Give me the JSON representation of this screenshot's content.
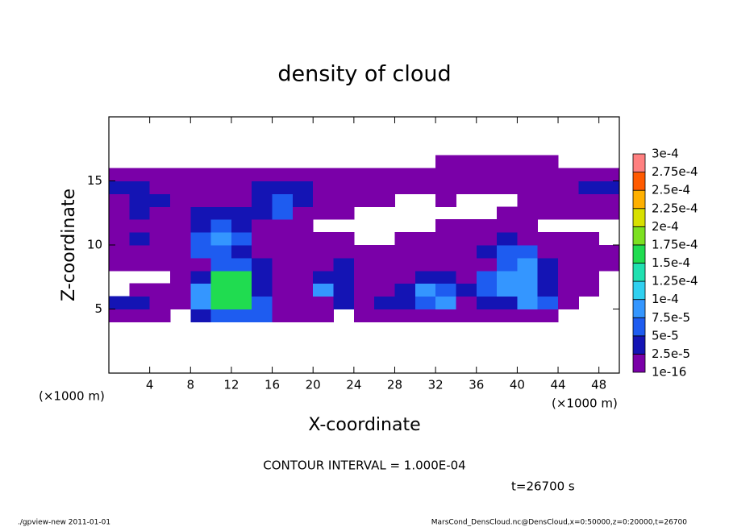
{
  "chart_data": {
    "type": "contour",
    "title": "density of cloud",
    "x_label": "X-coordinate",
    "y_label": "Z-coordinate",
    "x_unit": "(×1000 m)",
    "y_unit": "(×1000 m)",
    "annotation": "CONTOUR INTERVAL = 1.000E-04",
    "time_label": "t=26700 s",
    "footer_left": "./gpview-new   2011-01-01",
    "footer_right": "MarsCond_DensCloud.nc@DensCloud,x=0:50000,z=0:20000,t=26700",
    "xlim": [
      0,
      50
    ],
    "ylim": [
      0,
      20
    ],
    "xticks": [
      4,
      8,
      12,
      16,
      20,
      24,
      28,
      32,
      36,
      40,
      44,
      48
    ],
    "yticks": [
      5,
      10,
      15
    ],
    "levels": [
      1e-16,
      {
        "value": 2.5e-05,
        "label": "2.5e-5"
      },
      {
        "value": 5e-05,
        "label": "5e-5"
      },
      {
        "value": 7.5e-05,
        "label": "7.5e-5"
      },
      {
        "value": 0.0001,
        "label": "1e-4"
      },
      {
        "value": 0.000125,
        "label": "1.25e-4"
      },
      {
        "value": 0.00015,
        "label": "1.5e-4"
      },
      {
        "value": 0.000175,
        "label": "1.75e-4"
      },
      {
        "value": 0.0002,
        "label": "2e-4"
      },
      {
        "value": 0.000225,
        "label": "2.25e-4"
      },
      {
        "value": 0.00025,
        "label": "2.5e-4"
      },
      {
        "value": 0.000275,
        "label": "2.75e-4"
      },
      {
        "value": 0.0003,
        "label": "3e-4"
      }
    ],
    "colors": [
      "#7a00a8",
      "#1414b4",
      "#1e5cf0",
      "#3496ff",
      "#30d0f0",
      "#20e0b0",
      "#20dc50",
      "#7ce020",
      "#d8e000",
      "#ffb000",
      "#ff5a00",
      "#ff8080"
    ],
    "x": [
      1,
      3,
      5,
      7,
      9,
      11,
      13,
      15,
      17,
      19,
      21,
      23,
      25,
      27,
      29,
      31,
      33,
      35,
      37,
      39,
      41,
      43,
      45,
      47,
      49
    ],
    "z": [
      4.5,
      5.5,
      6.5,
      7.5,
      8.5,
      9.5,
      10.5,
      11.5,
      12.5,
      13.5,
      14.5,
      15.5,
      16.5
    ],
    "values": [
      [
        1e-05,
        1e-05,
        1e-05,
        null,
        3e-05,
        6e-05,
        6e-05,
        6e-05,
        1e-05,
        1e-05,
        1e-05,
        null,
        1e-05,
        1e-05,
        1e-05,
        1e-05,
        1e-05,
        1e-05,
        1e-05,
        1e-05,
        1e-05,
        1e-05,
        null,
        null,
        null
      ],
      [
        3e-05,
        3e-05,
        1e-05,
        1e-05,
        9e-05,
        0.00016,
        0.00016,
        6e-05,
        1e-05,
        1e-05,
        1e-05,
        3e-05,
        1e-05,
        3e-05,
        3e-05,
        6e-05,
        9e-05,
        1e-05,
        3e-05,
        3e-05,
        9e-05,
        6e-05,
        1e-05,
        null,
        null
      ],
      [
        null,
        1e-05,
        1e-05,
        1e-05,
        9e-05,
        0.00016,
        0.00016,
        3e-05,
        1e-05,
        1e-05,
        9e-05,
        3e-05,
        1e-05,
        1e-05,
        3e-05,
        9e-05,
        6e-05,
        3e-05,
        6e-05,
        9e-05,
        9e-05,
        3e-05,
        1e-05,
        1e-05,
        null
      ],
      [
        null,
        null,
        null,
        1e-05,
        3e-05,
        0.00016,
        0.00016,
        3e-05,
        1e-05,
        1e-05,
        3e-05,
        3e-05,
        1e-05,
        1e-05,
        1e-05,
        3e-05,
        3e-05,
        1e-05,
        6e-05,
        9e-05,
        9e-05,
        3e-05,
        1e-05,
        1e-05,
        null
      ],
      [
        1e-05,
        1e-05,
        1e-05,
        1e-05,
        1e-05,
        6e-05,
        6e-05,
        3e-05,
        1e-05,
        1e-05,
        1e-05,
        3e-05,
        1e-05,
        1e-05,
        1e-05,
        1e-05,
        1e-05,
        1e-05,
        1e-05,
        6e-05,
        9e-05,
        3e-05,
        1e-05,
        1e-05,
        1e-05
      ],
      [
        1e-05,
        1e-05,
        1e-05,
        1e-05,
        6e-05,
        6e-05,
        3e-05,
        1e-05,
        1e-05,
        1e-05,
        1e-05,
        1e-05,
        1e-05,
        1e-05,
        1e-05,
        1e-05,
        1e-05,
        1e-05,
        3e-05,
        6e-05,
        6e-05,
        1e-05,
        1e-05,
        1e-05,
        1e-05
      ],
      [
        1e-05,
        3e-05,
        1e-05,
        1e-05,
        6e-05,
        9e-05,
        6e-05,
        1e-05,
        1e-05,
        1e-05,
        1e-05,
        1e-05,
        null,
        null,
        1e-05,
        1e-05,
        1e-05,
        1e-05,
        1e-05,
        3e-05,
        1e-05,
        1e-05,
        1e-05,
        1e-05,
        null
      ],
      [
        1e-05,
        1e-05,
        1e-05,
        1e-05,
        3e-05,
        6e-05,
        3e-05,
        1e-05,
        1e-05,
        1e-05,
        null,
        null,
        null,
        null,
        null,
        null,
        1e-05,
        1e-05,
        1e-05,
        1e-05,
        1e-05,
        null,
        null,
        null,
        null
      ],
      [
        1e-05,
        3e-05,
        1e-05,
        1e-05,
        3e-05,
        3e-05,
        3e-05,
        3e-05,
        6e-05,
        1e-05,
        1e-05,
        1e-05,
        null,
        null,
        null,
        null,
        null,
        null,
        null,
        1e-05,
        1e-05,
        1e-05,
        1e-05,
        1e-05,
        1e-05
      ],
      [
        1e-05,
        3e-05,
        3e-05,
        1e-05,
        1e-05,
        1e-05,
        1e-05,
        3e-05,
        6e-05,
        3e-05,
        1e-05,
        1e-05,
        1e-05,
        1e-05,
        null,
        null,
        1e-05,
        null,
        null,
        null,
        1e-05,
        1e-05,
        1e-05,
        1e-05,
        1e-05
      ],
      [
        3e-05,
        3e-05,
        1e-05,
        1e-05,
        1e-05,
        1e-05,
        1e-05,
        3e-05,
        3e-05,
        3e-05,
        1e-05,
        1e-05,
        1e-05,
        1e-05,
        1e-05,
        1e-05,
        1e-05,
        1e-05,
        1e-05,
        1e-05,
        1e-05,
        1e-05,
        1e-05,
        3e-05,
        3e-05
      ],
      [
        1e-05,
        1e-05,
        1e-05,
        1e-05,
        1e-05,
        1e-05,
        1e-05,
        1e-05,
        1e-05,
        1e-05,
        1e-05,
        1e-05,
        1e-05,
        1e-05,
        1e-05,
        1e-05,
        1e-05,
        1e-05,
        1e-05,
        1e-05,
        1e-05,
        1e-05,
        1e-05,
        1e-05,
        1e-05
      ],
      [
        null,
        null,
        null,
        null,
        null,
        null,
        null,
        null,
        null,
        null,
        null,
        null,
        null,
        null,
        null,
        null,
        1e-05,
        1e-05,
        1e-05,
        1e-05,
        1e-05,
        1e-05,
        null,
        null,
        null
      ]
    ]
  }
}
